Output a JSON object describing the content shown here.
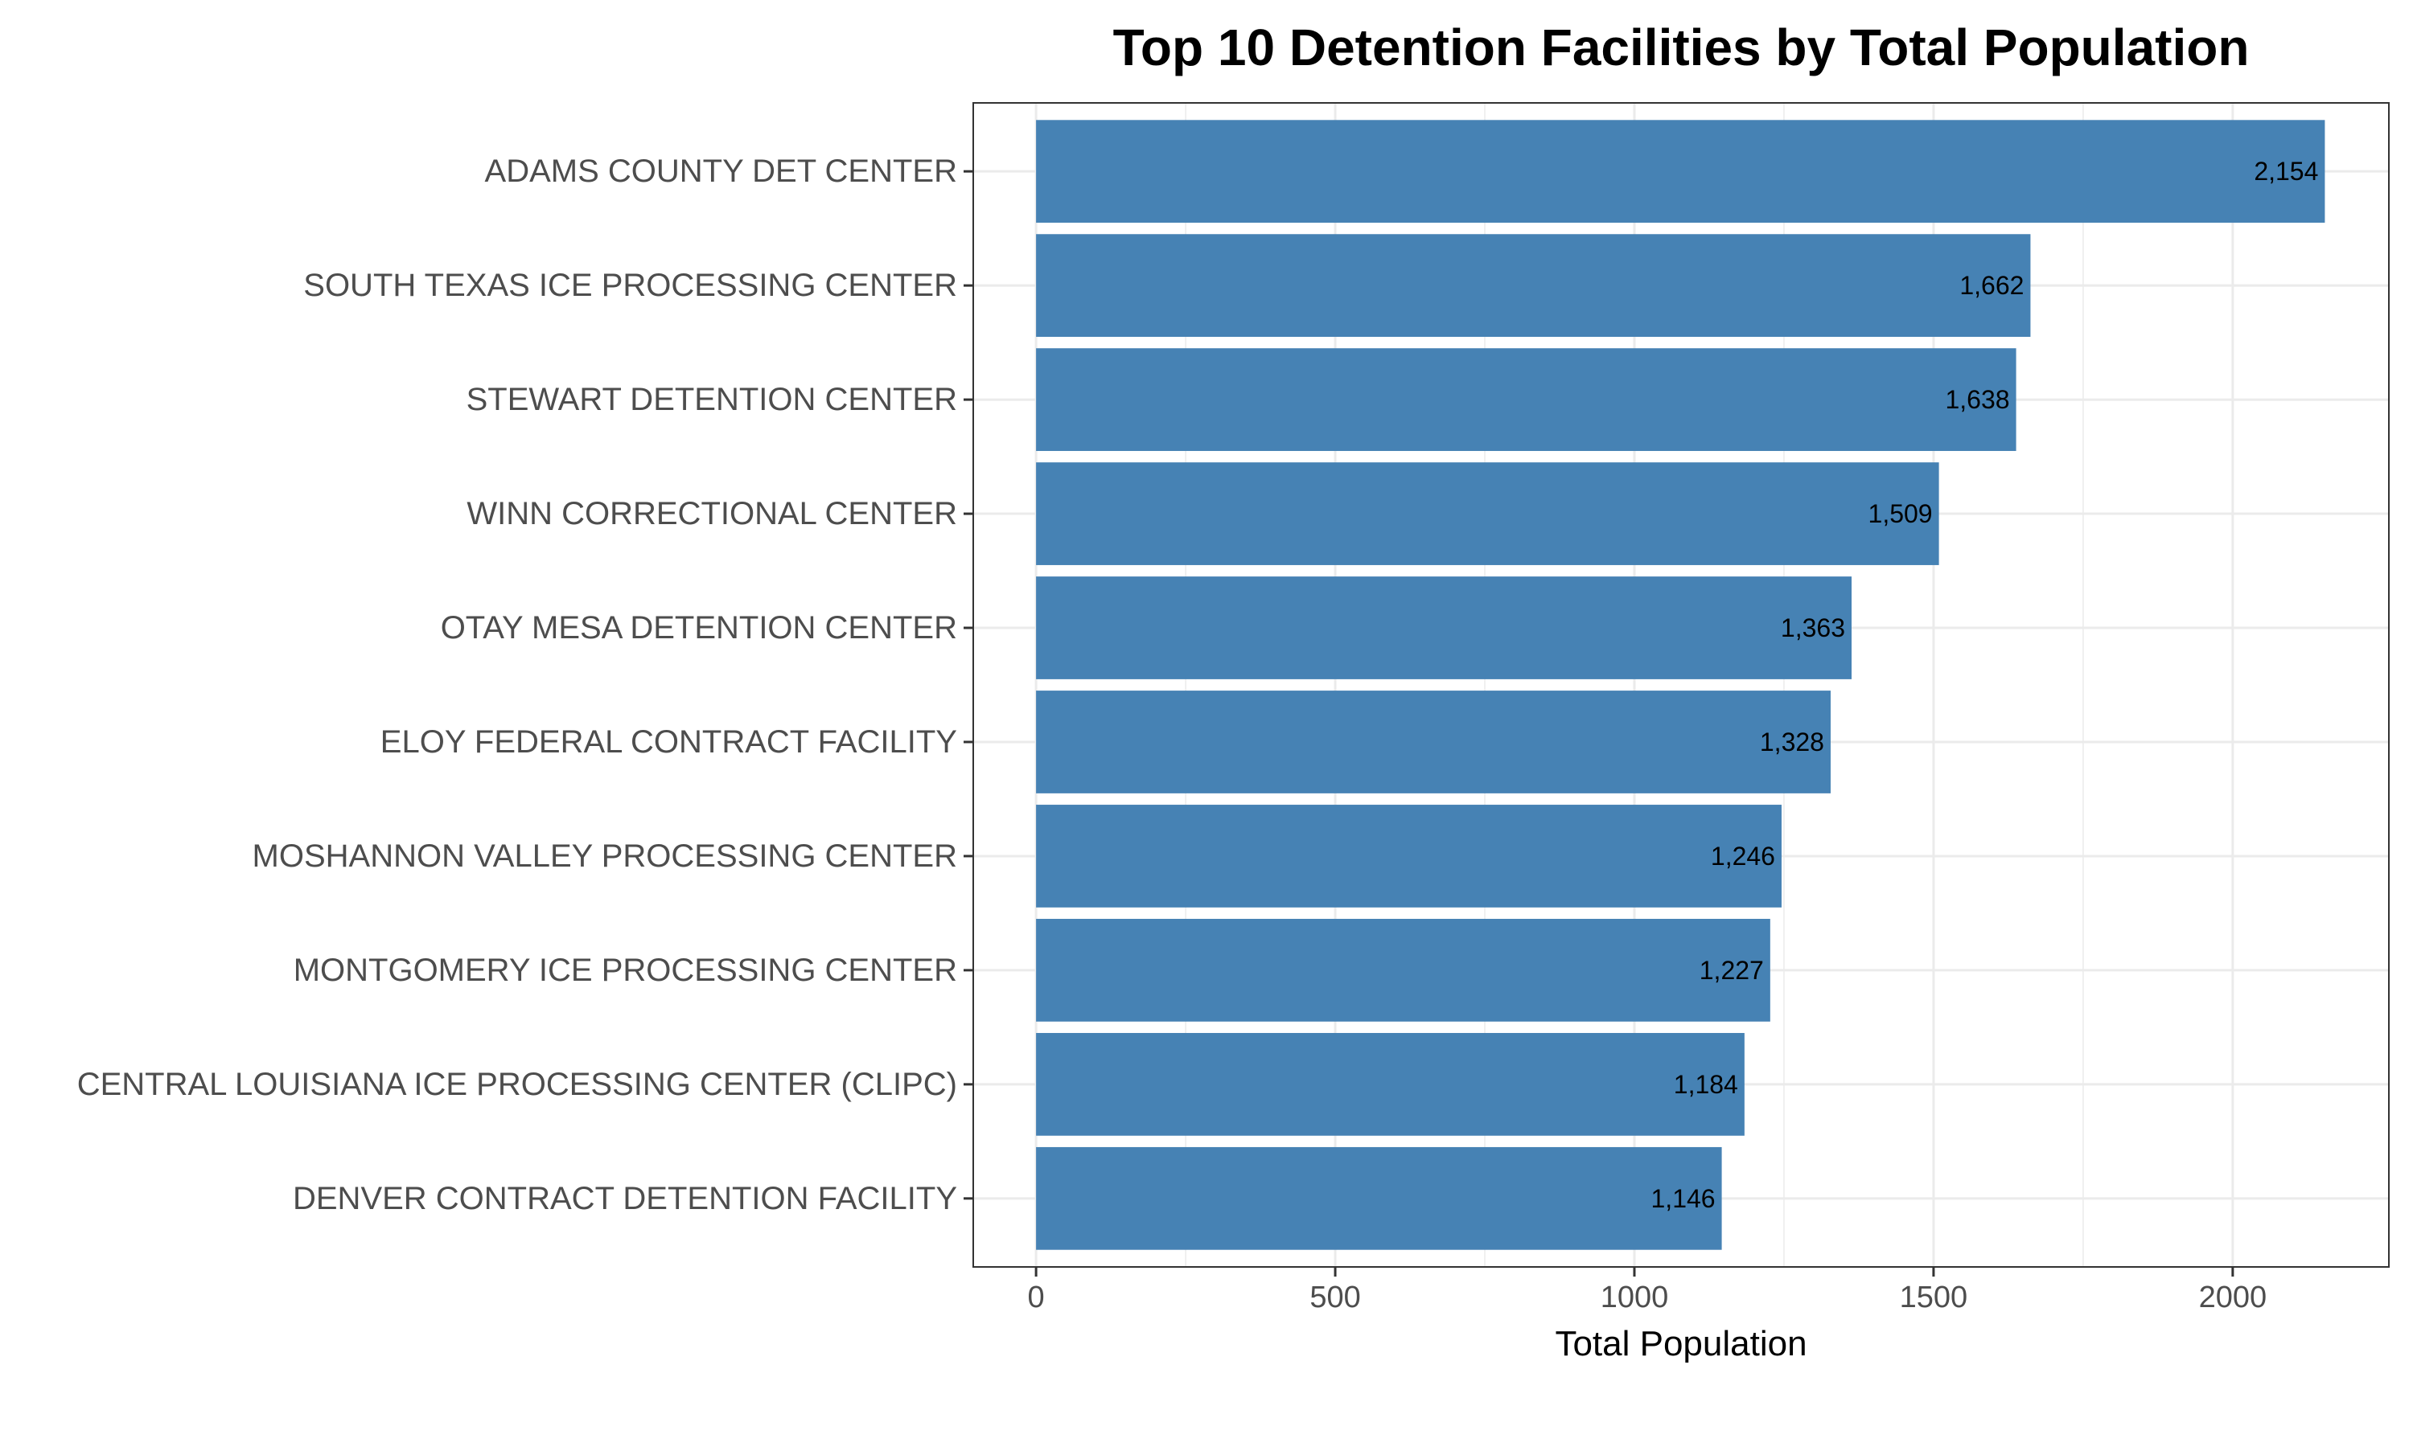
{
  "chart_data": {
    "type": "bar",
    "orientation": "horizontal",
    "title": "Top 10 Detention Facilities by Total Population",
    "xlabel": "Total Population",
    "ylabel": "",
    "categories": [
      "ADAMS COUNTY DET CENTER",
      "SOUTH TEXAS ICE PROCESSING CENTER",
      "STEWART DETENTION CENTER",
      "WINN CORRECTIONAL CENTER",
      "OTAY MESA DETENTION CENTER",
      "ELOY FEDERAL CONTRACT FACILITY",
      "MOSHANNON VALLEY PROCESSING CENTER",
      "MONTGOMERY ICE PROCESSING CENTER",
      "CENTRAL LOUISIANA ICE PROCESSING CENTER (CLIPC)",
      "DENVER CONTRACT DETENTION FACILITY"
    ],
    "values": [
      2154,
      1662,
      1638,
      1509,
      1363,
      1328,
      1246,
      1227,
      1184,
      1146
    ],
    "value_labels": [
      "2,154",
      "1,662",
      "1,638",
      "1,509",
      "1,363",
      "1,328",
      "1,246",
      "1,227",
      "1,184",
      "1,146"
    ],
    "xticks": [
      0,
      500,
      1000,
      1500,
      2000
    ],
    "xtick_labels": [
      "0",
      "500",
      "1000",
      "1500",
      "2000"
    ],
    "xlim": [
      -105,
      2261
    ],
    "grid": true,
    "legend": "none",
    "colors": {
      "bar": "#4682b4",
      "grid": "#ebebeb",
      "panel_border": "#333333"
    }
  }
}
